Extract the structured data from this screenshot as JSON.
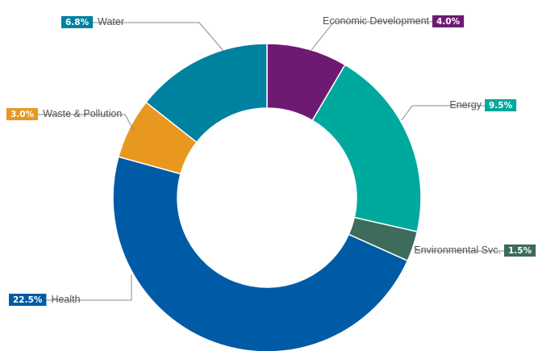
{
  "chart_data": {
    "type": "pie",
    "donut": true,
    "title": "",
    "slices": [
      {
        "label": "Economic Development",
        "value": 4.0,
        "value_label": "4.0%",
        "color": "#6f1a72"
      },
      {
        "label": "Energy",
        "value": 9.5,
        "value_label": "9.5%",
        "color": "#00a99d"
      },
      {
        "label": "Environmental Svc.",
        "value": 1.5,
        "value_label": "1.5%",
        "color": "#3d6b5c"
      },
      {
        "label": "Health",
        "value": 22.5,
        "value_label": "22.5%",
        "color": "#005ba6"
      },
      {
        "label": "Waste & Pollution",
        "value": 3.0,
        "value_label": "3.0%",
        "color": "#e8981f"
      },
      {
        "label": "Water",
        "value": 6.8,
        "value_label": "6.8%",
        "color": "#0081a0"
      }
    ]
  }
}
